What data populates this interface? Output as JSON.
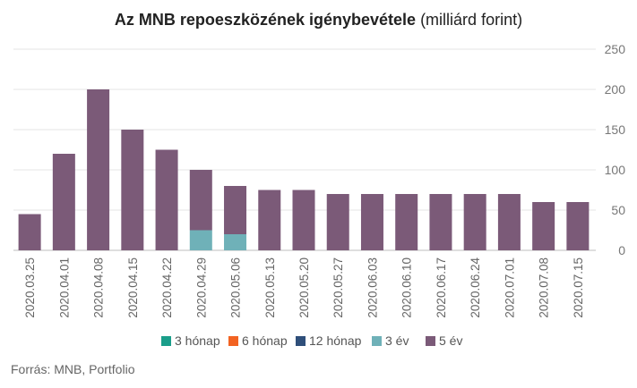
{
  "title": {
    "bold": "Az MNB repoeszközének igénybevétele",
    "normal": "(milliárd forint)"
  },
  "source": "Forrás: MNB, Portfolio",
  "chart_data": {
    "type": "bar",
    "stacked": true,
    "title": "Az MNB repoeszközének igénybevétele (milliárd forint)",
    "categories": [
      "2020.03.25",
      "2020.04.01",
      "2020.04.08",
      "2020.04.15",
      "2020.04.22",
      "2020.04.29",
      "2020.05.06",
      "2020.05.13",
      "2020.05.20",
      "2020.05.27",
      "2020.06.03",
      "2020.06.10",
      "2020.06.17",
      "2020.06.24",
      "2020.07.01",
      "2020.07.08",
      "2020.07.15"
    ],
    "series": [
      {
        "name": "3 hónap",
        "color": "#1a9e8a",
        "values": [
          0,
          0,
          0,
          0,
          0,
          0,
          0,
          0,
          0,
          0,
          0,
          0,
          0,
          0,
          0,
          0,
          0
        ]
      },
      {
        "name": "6 hónap",
        "color": "#f26322",
        "values": [
          0,
          0,
          0,
          0,
          0,
          0,
          0,
          0,
          0,
          0,
          0,
          0,
          0,
          0,
          0,
          0,
          0
        ]
      },
      {
        "name": "12 hónap",
        "color": "#2f4f7a",
        "values": [
          0,
          0,
          0,
          0,
          0,
          0,
          0,
          0,
          0,
          0,
          0,
          0,
          0,
          0,
          0,
          0,
          0
        ]
      },
      {
        "name": "3 év",
        "color": "#6fb1b8",
        "values": [
          0,
          0,
          0,
          0,
          0,
          25,
          20,
          0,
          0,
          0,
          0,
          0,
          0,
          0,
          0,
          0,
          0
        ]
      },
      {
        "name": "5 év",
        "color": "#7b5a78",
        "values": [
          45,
          120,
          200,
          150,
          125,
          75,
          60,
          75,
          75,
          70,
          70,
          70,
          70,
          70,
          70,
          60,
          60
        ]
      }
    ],
    "y_ticks": [
      0,
      50,
      100,
      150,
      200,
      250
    ],
    "ylim": [
      0,
      250
    ],
    "y_axis_side": "right",
    "grid": true,
    "legend_placement": "bottom"
  }
}
